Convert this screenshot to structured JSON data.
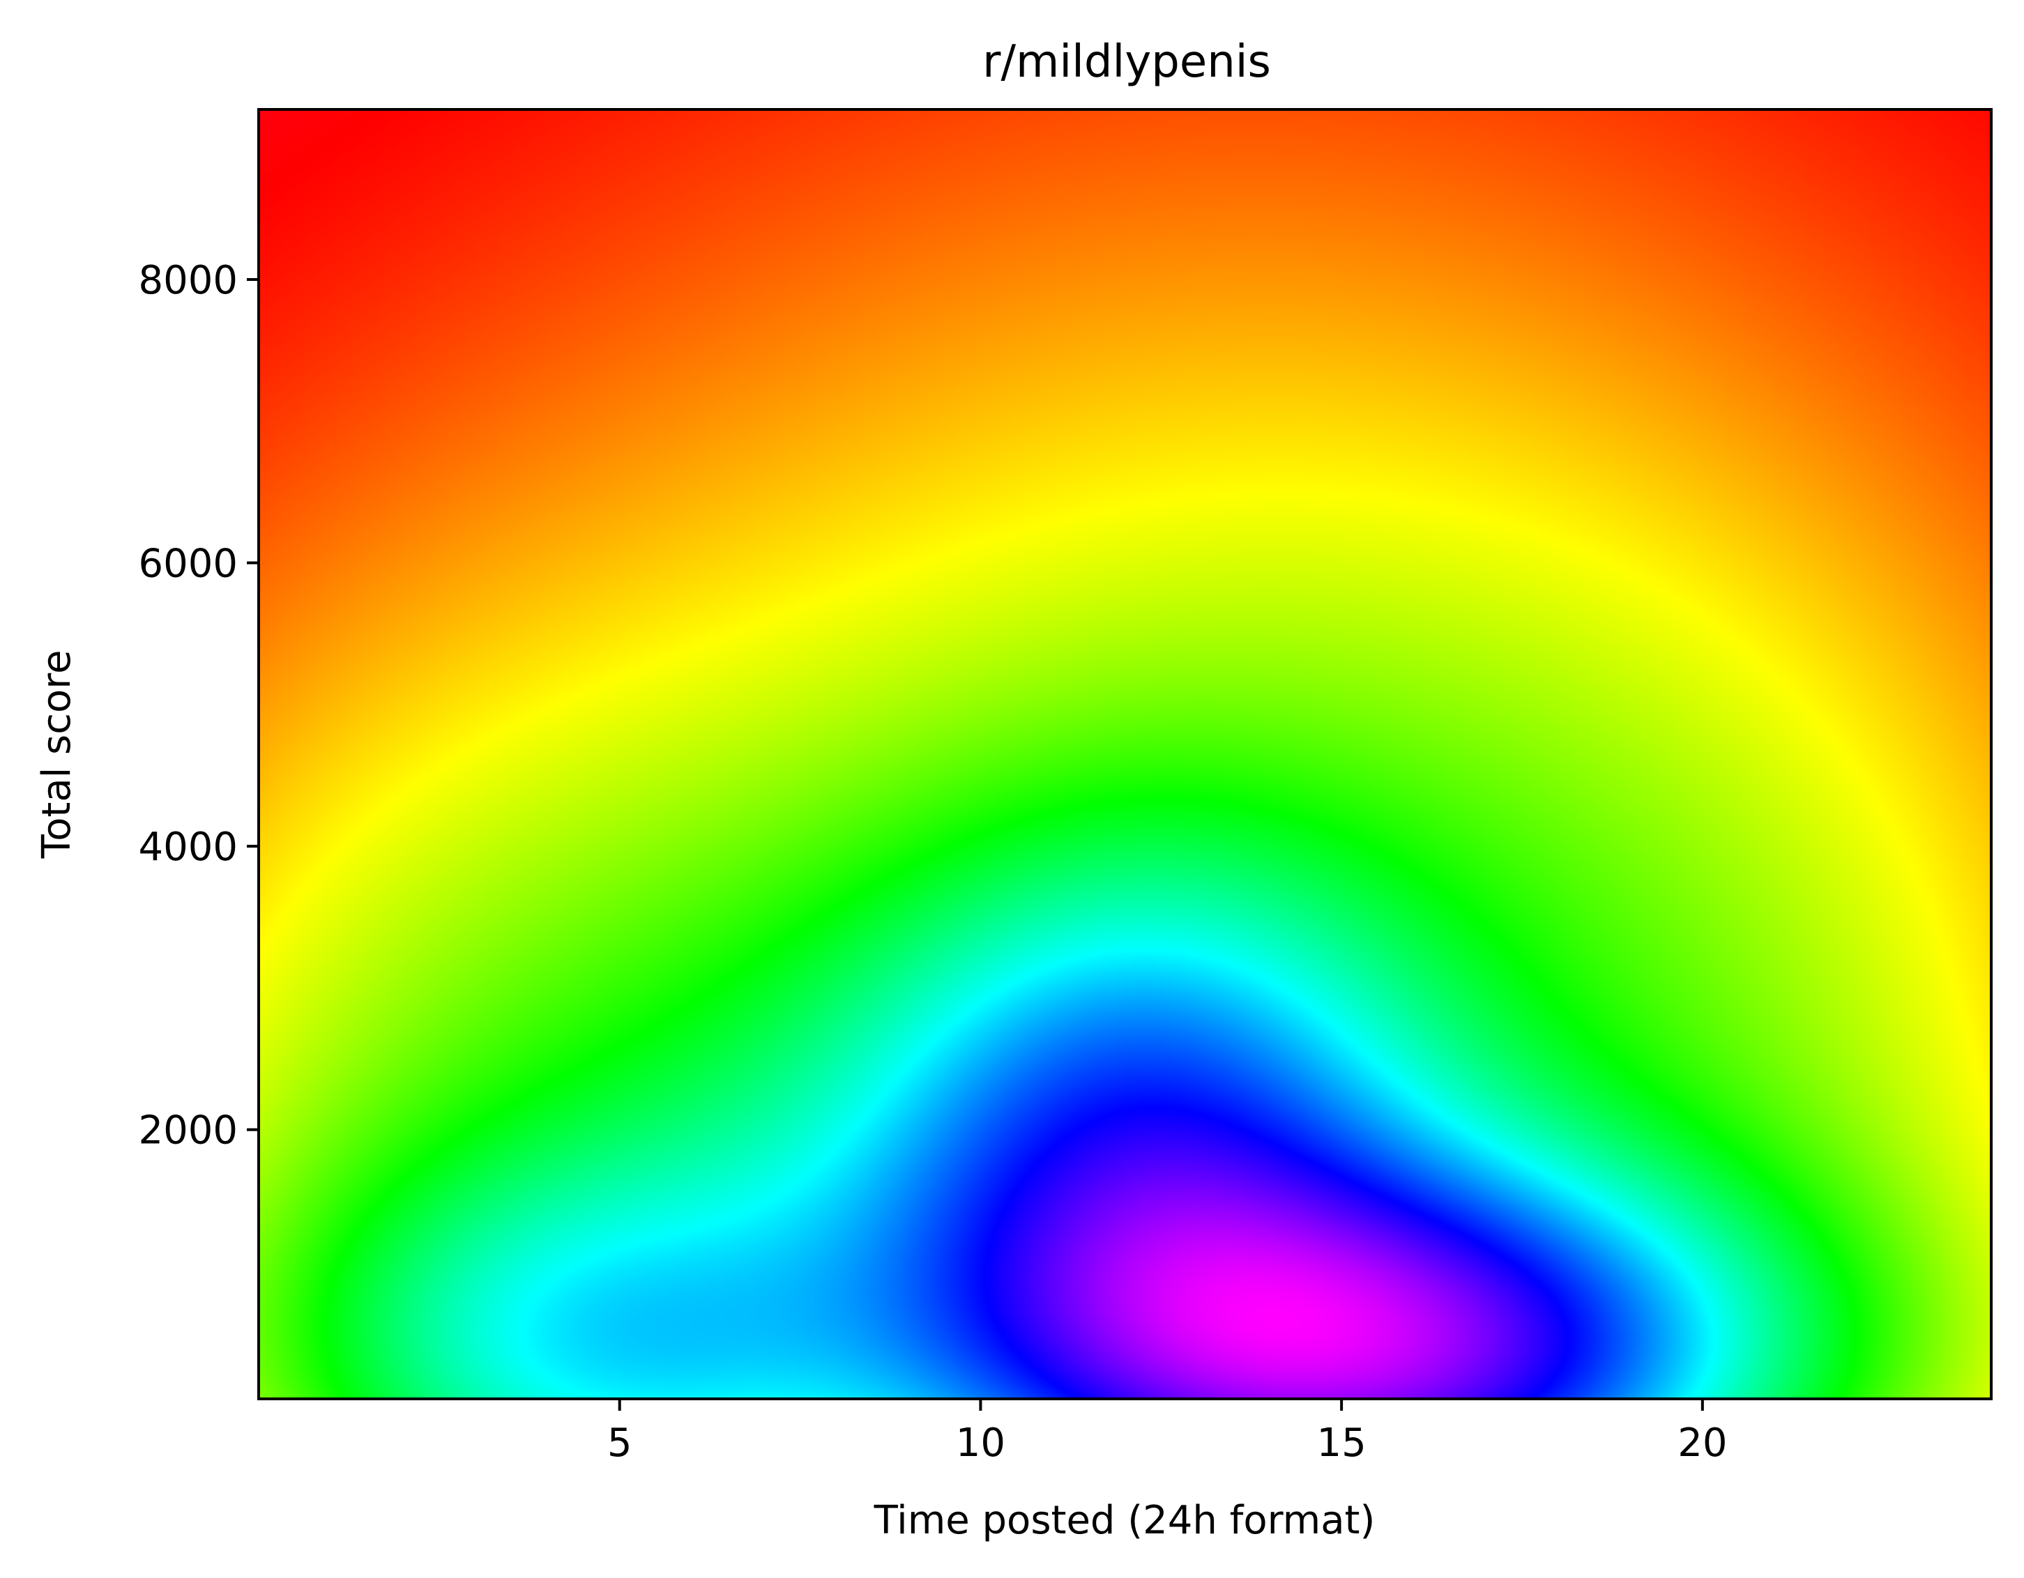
{
  "chart_data": {
    "type": "heatmap",
    "title": "r/mildlypenis",
    "xlabel": "Time posted (24h format)",
    "ylabel": "Total score",
    "xlim": [
      0,
      24
    ],
    "ylim": [
      100,
      9200
    ],
    "x_ticks": [
      5,
      10,
      15,
      20
    ],
    "y_ticks": [
      2000,
      4000,
      6000,
      8000
    ],
    "colormap": "gist_rainbow",
    "grid": false,
    "legend": "none",
    "density_peaks": [
      {
        "x": 15.5,
        "y": 450,
        "intensity": 1.0
      },
      {
        "x": 12.5,
        "y": 1900,
        "intensity": 0.55
      },
      {
        "x": 4.5,
        "y": 450,
        "intensity": 0.45
      }
    ]
  }
}
